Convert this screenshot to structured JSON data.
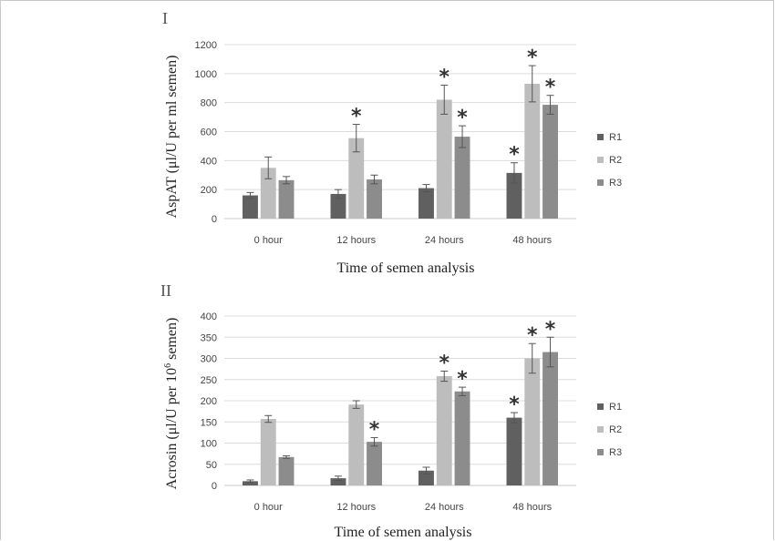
{
  "chart_data": [
    {
      "type": "bar",
      "panel_label": "I",
      "categories": [
        "0 hour",
        "12 hours",
        "24 hours",
        "48 hours"
      ],
      "series": [
        {
          "name": "R1",
          "color": "#606060",
          "values": [
            160,
            170,
            210,
            315
          ],
          "errors": [
            20,
            30,
            25,
            70
          ],
          "stars": [
            false,
            false,
            false,
            true
          ]
        },
        {
          "name": "R2",
          "color": "#bdbdbd",
          "values": [
            350,
            555,
            820,
            930
          ],
          "errors": [
            75,
            95,
            100,
            125
          ],
          "stars": [
            false,
            true,
            true,
            true
          ]
        },
        {
          "name": "R3",
          "color": "#8c8c8c",
          "values": [
            265,
            270,
            565,
            785
          ],
          "errors": [
            25,
            30,
            75,
            65
          ],
          "stars": [
            false,
            false,
            true,
            true
          ]
        }
      ],
      "xlabel": "Time of semen analysis",
      "ylabel": "AspAT (μl/U per ml semen)",
      "ylim": [
        0,
        1200
      ],
      "yticks": [
        0,
        200,
        400,
        600,
        800,
        1000,
        1200
      ],
      "legend_position": "right",
      "grid": true
    },
    {
      "type": "bar",
      "panel_label": "II",
      "categories": [
        "0 hour",
        "12 hours",
        "24 hours",
        "48 hours"
      ],
      "series": [
        {
          "name": "R1",
          "color": "#606060",
          "values": [
            10,
            17,
            35,
            160
          ],
          "errors": [
            3,
            5,
            8,
            12
          ],
          "stars": [
            false,
            false,
            false,
            true
          ]
        },
        {
          "name": "R2",
          "color": "#bdbdbd",
          "values": [
            157,
            191,
            258,
            300
          ],
          "errors": [
            8,
            9,
            12,
            35
          ],
          "stars": [
            false,
            false,
            true,
            true
          ]
        },
        {
          "name": "R3",
          "color": "#8c8c8c",
          "values": [
            67,
            103,
            222,
            315
          ],
          "errors": [
            3,
            10,
            10,
            35
          ],
          "stars": [
            false,
            true,
            true,
            true
          ]
        }
      ],
      "xlabel": "Time of semen analysis",
      "ylabel_prefix": "Acrosin (μl/U per 10",
      "ylabel_sup": "6",
      "ylabel_suffix": " semen)",
      "ylim": [
        0,
        400
      ],
      "yticks": [
        0,
        50,
        100,
        150,
        200,
        250,
        300,
        350,
        400
      ],
      "legend_position": "right",
      "grid": true
    }
  ]
}
